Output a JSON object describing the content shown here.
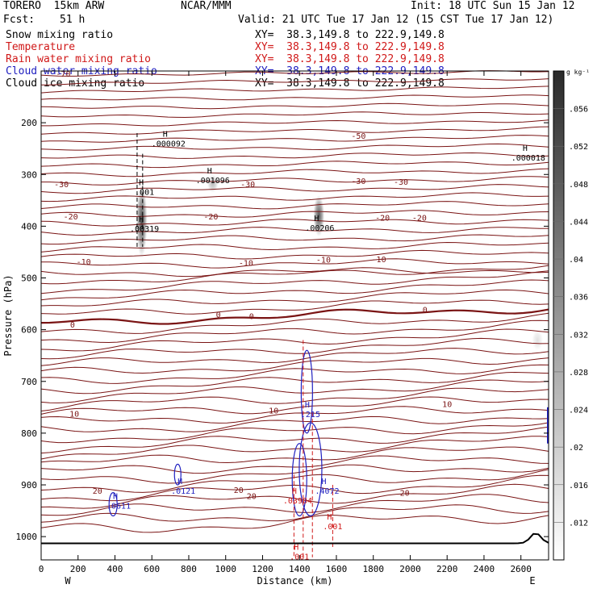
{
  "header": {
    "model": "TORERO  15km ARW",
    "org": "NCAR/MMM",
    "init": "Init: 18 UTC Sun 15 Jan 12",
    "fcst_label": "Fcst:",
    "fcst_value": "51 h",
    "valid": "Valid: 21 UTC Tue 17 Jan 12 (15 CST Tue 17 Jan 12)"
  },
  "fields": [
    {
      "name": "Snow mixing ratio",
      "xy": "XY=  38.3,149.8 to 222.9,149.8",
      "color": "#000000"
    },
    {
      "name": "Temperature",
      "xy": "XY=  38.3,149.8 to 222.9,149.8",
      "color": "#d01818"
    },
    {
      "name": "Rain water mixing ratio",
      "xy": "XY=  38.3,149.8 to 222.9,149.8",
      "color": "#d01818"
    },
    {
      "name": "Cloud water mixing ratio",
      "xy": "XY=  38.3,149.8 to 222.9,149.8",
      "color": "#2020c0"
    },
    {
      "name": "Cloud ice mixing ratio",
      "xy": "XY=  38.3,149.8 to 222.9,149.8",
      "color": "#000000"
    }
  ],
  "chart_data": {
    "type": "cross-section contour",
    "xlabel": "Distance (km)",
    "ylabel": "Pressure (hPa)",
    "x_ticks": [
      0,
      200,
      400,
      600,
      800,
      1000,
      1200,
      1400,
      1600,
      1800,
      2000,
      2200,
      2400,
      2600
    ],
    "y_ticks": [
      200,
      300,
      400,
      500,
      600,
      700,
      800,
      900,
      1000
    ],
    "xlim": [
      0,
      2750
    ],
    "ylim": [
      1045,
      100
    ],
    "x_end_labels": {
      "left": "W",
      "right": "E"
    },
    "colorbar": {
      "unit": "g kg⁻¹",
      "ticks": [
        ".012",
        ".016",
        ".02",
        ".024",
        ".028",
        ".032",
        ".036",
        ".04",
        ".044",
        ".048",
        ".052",
        ".056"
      ],
      "tick_values": [
        0.012,
        0.016,
        0.02,
        0.024,
        0.028,
        0.032,
        0.036,
        0.04,
        0.044,
        0.048,
        0.052,
        0.056
      ],
      "range": [
        0.008,
        0.06
      ]
    },
    "isotherm_labels": [
      {
        "text": "-70",
        "x": 120,
        "p": 105
      },
      {
        "text": "-50",
        "x": 1720,
        "p": 225
      },
      {
        "text": "-30",
        "x": 110,
        "p": 318
      },
      {
        "text": "-30",
        "x": 1120,
        "p": 318
      },
      {
        "text": "-30",
        "x": 1720,
        "p": 312
      },
      {
        "text": "-30",
        "x": 1950,
        "p": 314
      },
      {
        "text": "-20",
        "x": 160,
        "p": 381
      },
      {
        "text": "-20",
        "x": 920,
        "p": 381
      },
      {
        "text": "-20",
        "x": 1850,
        "p": 383
      },
      {
        "text": "-20",
        "x": 2050,
        "p": 383
      },
      {
        "text": "-10",
        "x": 230,
        "p": 468
      },
      {
        "text": "-10",
        "x": 1110,
        "p": 470
      },
      {
        "text": "-10",
        "x": 1530,
        "p": 464
      },
      {
        "text": "-10",
        "x": 1830,
        "p": 463
      },
      {
        "text": "0",
        "x": 170,
        "p": 590
      },
      {
        "text": "0",
        "x": 960,
        "p": 570
      },
      {
        "text": "0",
        "x": 1140,
        "p": 573
      },
      {
        "text": "0",
        "x": 2080,
        "p": 561
      },
      {
        "text": "10",
        "x": 180,
        "p": 762
      },
      {
        "text": "10",
        "x": 1260,
        "p": 756
      },
      {
        "text": "10",
        "x": 2200,
        "p": 743
      },
      {
        "text": "20",
        "x": 305,
        "p": 911
      },
      {
        "text": "20",
        "x": 1070,
        "p": 909
      },
      {
        "text": "20",
        "x": 1970,
        "p": 915
      },
      {
        "text": "20",
        "x": 1140,
        "p": 921
      }
    ],
    "maxima": [
      {
        "text": ".000092",
        "x": 690,
        "p": 246,
        "color": "#000000"
      },
      {
        "text": ".001096",
        "x": 930,
        "p": 317,
        "color": "#000000"
      },
      {
        "text": ".001",
        "x": 560,
        "p": 339,
        "color": "#000000"
      },
      {
        "text": ".00319",
        "x": 560,
        "p": 410,
        "color": "#000000"
      },
      {
        "text": ".00206",
        "x": 1510,
        "p": 409,
        "color": "#000000"
      },
      {
        "text": ".000018",
        "x": 2640,
        "p": 273,
        "color": "#000000"
      },
      {
        "text": ".215",
        "x": 1460,
        "p": 769,
        "color": "#2020c0"
      },
      {
        "text": ".0611",
        "x": 420,
        "p": 946,
        "color": "#2020c0"
      },
      {
        "text": ".0121",
        "x": 770,
        "p": 917,
        "color": "#2020c0"
      },
      {
        "text": ".4072",
        "x": 1550,
        "p": 917,
        "color": "#2020c0"
      },
      {
        "text": ".03904",
        "x": 1390,
        "p": 936,
        "color": "#d01818"
      },
      {
        "text": ".001",
        "x": 1580,
        "p": 986,
        "color": "#d01818"
      },
      {
        "text": ".001",
        "x": 1400,
        "p": 1044,
        "color": "#d01818"
      }
    ],
    "snow_patches": [
      {
        "x": 545,
        "p_top": 320,
        "p_bottom": 460,
        "intensity": 0.9
      },
      {
        "x": 930,
        "p_top": 300,
        "p_bottom": 335,
        "intensity": 0.35
      },
      {
        "x": 1505,
        "p_top": 340,
        "p_bottom": 420,
        "intensity": 0.85
      },
      {
        "x": 2690,
        "p_top": 600,
        "p_bottom": 640,
        "intensity": 0.15
      }
    ]
  }
}
